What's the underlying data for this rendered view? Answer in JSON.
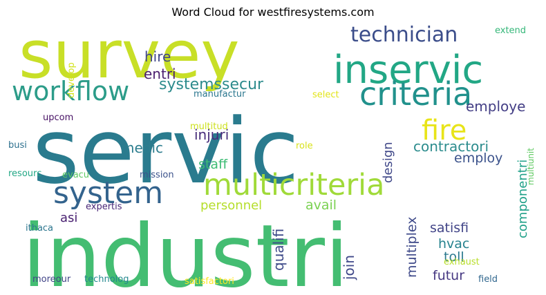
{
  "title": "Word Cloud for westfiresystems.com",
  "words": [
    {
      "text": "servic",
      "color": "#2a7b8e"
    },
    {
      "text": "industri",
      "color": "#44bd72"
    },
    {
      "text": "survey",
      "color": "#c8df27"
    },
    {
      "text": "inservic",
      "color": "#22a785"
    },
    {
      "text": "criteria",
      "color": "#21918c"
    },
    {
      "text": "system",
      "color": "#33638d"
    },
    {
      "text": "multicriteria",
      "color": "#a0da39"
    },
    {
      "text": "workflow",
      "color": "#2c9c89"
    },
    {
      "text": "technician",
      "color": "#3b4d8a"
    },
    {
      "text": "fire",
      "color": "#e8e419"
    },
    {
      "text": "systemssecur",
      "color": "#2d8b8c"
    },
    {
      "text": "hire",
      "color": "#404688"
    },
    {
      "text": "entri",
      "color": "#4a1d6e"
    },
    {
      "text": "employe",
      "color": "#433e85"
    },
    {
      "text": "contractori",
      "color": "#2c8c8d"
    },
    {
      "text": "design",
      "color": "#3f4788"
    },
    {
      "text": "medic",
      "color": "#2c7d8e"
    },
    {
      "text": "injuri",
      "color": "#472d7b"
    },
    {
      "text": "employ",
      "color": "#3b528b"
    },
    {
      "text": "staff",
      "color": "#3dbc74"
    },
    {
      "text": "componentri",
      "color": "#1fa088"
    },
    {
      "text": "multiunit",
      "color": "#5fc961"
    },
    {
      "text": "avail",
      "color": "#7ad151"
    },
    {
      "text": "personnel",
      "color": "#b5de2b"
    },
    {
      "text": "satisfi",
      "color": "#414487"
    },
    {
      "text": "qualifi",
      "color": "#3e4a89"
    },
    {
      "text": "multiplex",
      "color": "#3e4989"
    },
    {
      "text": "join",
      "color": "#3f4889"
    },
    {
      "text": "hvac",
      "color": "#26828e"
    },
    {
      "text": "toll",
      "color": "#2a788e"
    },
    {
      "text": "futur",
      "color": "#453781"
    },
    {
      "text": "exhaust",
      "color": "#b8de29"
    },
    {
      "text": "field",
      "color": "#31678e"
    },
    {
      "text": "satisfactori",
      "color": "#fde725"
    },
    {
      "text": "technolog",
      "color": "#23888e"
    },
    {
      "text": "moreour",
      "color": "#414487"
    },
    {
      "text": "asi",
      "color": "#481f70"
    },
    {
      "text": "expertis",
      "color": "#482576"
    },
    {
      "text": "ithaca",
      "color": "#2b758e"
    },
    {
      "text": "resourc",
      "color": "#22a785"
    },
    {
      "text": "evacu",
      "color": "#5ec962"
    },
    {
      "text": "mission",
      "color": "#3b528b"
    },
    {
      "text": "busi",
      "color": "#2d708e"
    },
    {
      "text": "upcom",
      "color": "#471164"
    },
    {
      "text": "develop",
      "color": "#d2e21b"
    },
    {
      "text": "manufactur",
      "color": "#2a768e"
    },
    {
      "text": "select",
      "color": "#e2e418"
    },
    {
      "text": "multitud",
      "color": "#cde11d"
    },
    {
      "text": "role",
      "color": "#d8e219"
    },
    {
      "text": "extend",
      "color": "#35b779"
    }
  ]
}
